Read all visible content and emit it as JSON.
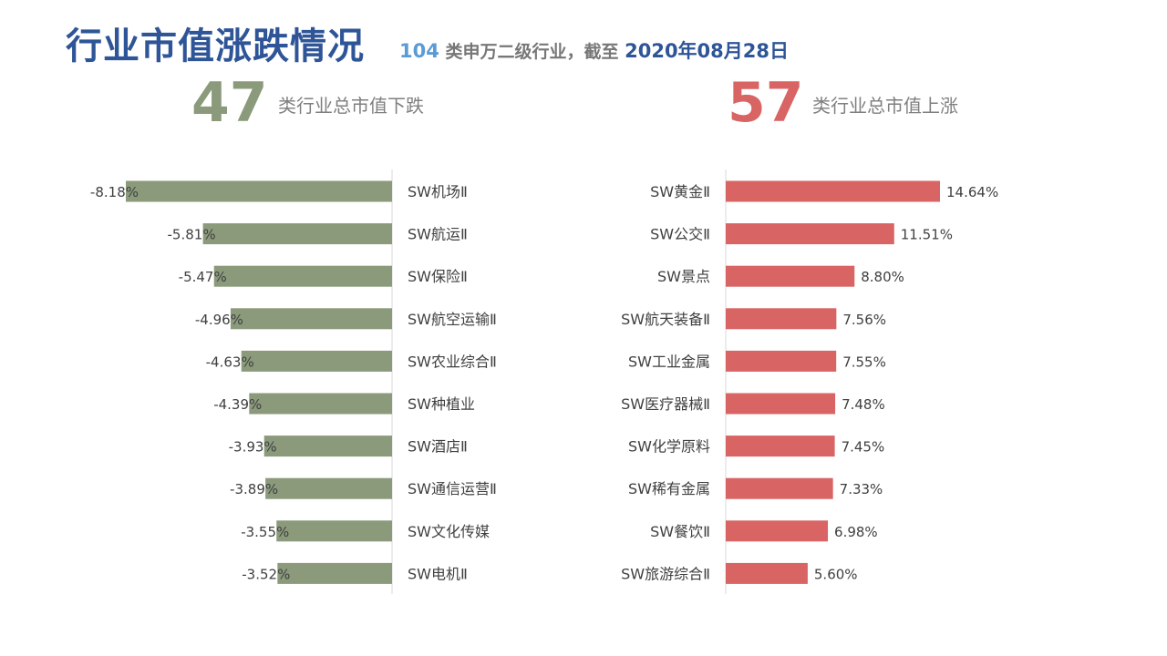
{
  "header": {
    "title": "行业市值涨跌情况",
    "subtitle_count": "104",
    "subtitle_text": "类申万二级行业，截至",
    "subtitle_date": "2020年08月28日"
  },
  "summary": {
    "down_count": "47",
    "down_label": "类行业总市值下跌",
    "up_count": "57",
    "up_label": "类行业总市值上涨"
  },
  "colors": {
    "down": "#8A9A7B",
    "up": "#D86464",
    "title": "#2E5597"
  },
  "chart_data": [
    {
      "type": "bar",
      "orientation": "horizontal",
      "categories": [
        "SW机场Ⅱ",
        "SW航运Ⅱ",
        "SW保险Ⅱ",
        "SW航空运输Ⅱ",
        "SW农业综合Ⅱ",
        "SW种植业",
        "SW酒店Ⅱ",
        "SW通信运营Ⅱ",
        "SW文化传媒",
        "SW电机Ⅱ"
      ],
      "values": [
        -8.18,
        -5.81,
        -5.47,
        -4.96,
        -4.63,
        -4.39,
        -3.93,
        -3.89,
        -3.55,
        -3.52
      ],
      "labels": [
        "-8.18%",
        "-5.81%",
        "-5.47%",
        "-4.96%",
        "-4.63%",
        "-4.39%",
        "-3.93%",
        "-3.89%",
        "-3.55%",
        "-3.52%"
      ],
      "xlim": [
        -8.18,
        0
      ],
      "grid": false
    },
    {
      "type": "bar",
      "orientation": "horizontal",
      "categories": [
        "SW黄金Ⅱ",
        "SW公交Ⅱ",
        "SW景点",
        "SW航天装备Ⅱ",
        "SW工业金属",
        "SW医疗器械Ⅱ",
        "SW化学原料",
        "SW稀有金属",
        "SW餐饮Ⅱ",
        "SW旅游综合Ⅱ"
      ],
      "values": [
        14.64,
        11.51,
        8.8,
        7.56,
        7.55,
        7.48,
        7.45,
        7.33,
        6.98,
        5.6
      ],
      "labels": [
        "14.64%",
        "11.51%",
        "8.80%",
        "7.56%",
        "7.55%",
        "7.48%",
        "7.45%",
        "7.33%",
        "6.98%",
        "5.60%"
      ],
      "xlim": [
        0,
        14.64
      ],
      "grid": false
    }
  ]
}
